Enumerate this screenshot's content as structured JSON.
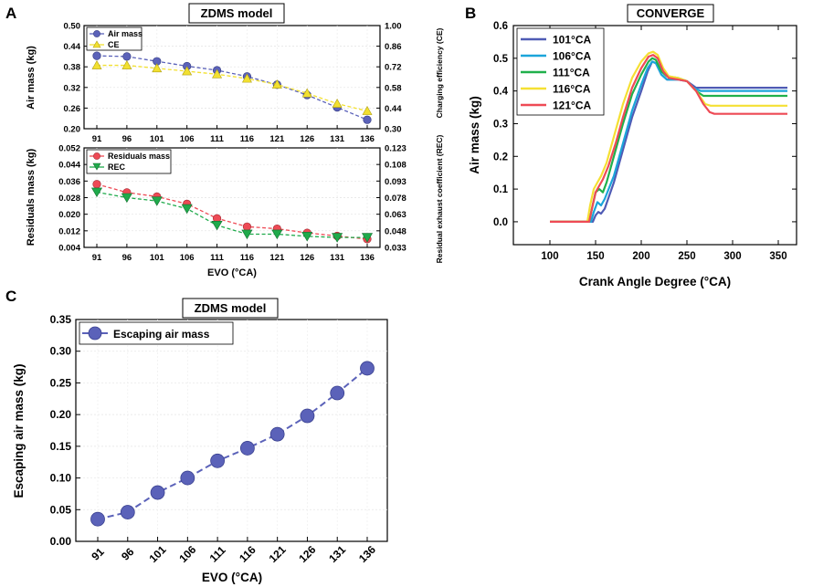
{
  "panels": {
    "a_letter": "A",
    "b_letter": "B",
    "c_letter": "C"
  },
  "chart_data": [
    {
      "id": "A-top",
      "type": "line",
      "title": "ZDMS model",
      "categories": [
        "91",
        "96",
        "101",
        "106",
        "111",
        "116",
        "121",
        "126",
        "131",
        "136"
      ],
      "ylabel": "Air mass (kg)",
      "y2label": "Charging efficiency (CE)",
      "ylim": [
        0.2,
        0.5
      ],
      "y2lim": [
        0.3,
        1.0
      ],
      "yticks": [
        "0.20",
        "0.26",
        "0.32",
        "0.38",
        "0.44",
        "0.50"
      ],
      "y2ticks": [
        "0.30",
        "0.44",
        "0.58",
        "0.72",
        "0.86",
        "1.00"
      ],
      "series": [
        {
          "name": "Air mass",
          "axis": "left",
          "color": "#5B62B9",
          "values": [
            0.412,
            0.41,
            0.396,
            0.382,
            0.37,
            0.352,
            0.328,
            0.298,
            0.262,
            0.226
          ]
        },
        {
          "name": "CE",
          "axis": "right",
          "color": "#F2E030",
          "values": [
            0.73,
            0.73,
            0.71,
            0.69,
            0.67,
            0.64,
            0.6,
            0.54,
            0.47,
            0.42
          ]
        }
      ]
    },
    {
      "id": "A-bottom",
      "type": "line",
      "categories": [
        "91",
        "96",
        "101",
        "106",
        "111",
        "116",
        "121",
        "126",
        "131",
        "136"
      ],
      "xlabel": "EVO (°CA)",
      "ylabel": "Residuals mass (kg)",
      "y2label": "Residual exhaust coefficient (REC)",
      "ylim": [
        0.004,
        0.052
      ],
      "y2lim": [
        0.033,
        0.123
      ],
      "yticks": [
        "0.004",
        "0.012",
        "0.020",
        "0.028",
        "0.036",
        "0.044",
        "0.052"
      ],
      "y2ticks": [
        "0.033",
        "0.048",
        "0.063",
        "0.078",
        "0.093",
        "0.108",
        "0.123"
      ],
      "series": [
        {
          "name": "Residuals mass",
          "axis": "left",
          "color": "#EE4A55",
          "values": [
            0.0345,
            0.0305,
            0.0285,
            0.025,
            0.018,
            0.014,
            0.013,
            0.011,
            0.0095,
            0.008
          ]
        },
        {
          "name": "REC",
          "axis": "right",
          "color": "#1FAA4B",
          "values": [
            0.083,
            0.078,
            0.075,
            0.068,
            0.053,
            0.045,
            0.045,
            0.043,
            0.042,
            0.042
          ]
        }
      ]
    },
    {
      "id": "B",
      "type": "line",
      "title": "CONVERGE",
      "xlabel": "Crank Angle Degree (°CA)",
      "ylabel": "Air mass (kg)",
      "xlim": [
        60,
        370
      ],
      "ylim": [
        -0.07,
        0.6
      ],
      "xticks": [
        100,
        150,
        200,
        250,
        300,
        350
      ],
      "yticks": [
        "0.0",
        "0.1",
        "0.2",
        "0.3",
        "0.4",
        "0.5",
        "0.6"
      ],
      "series": [
        {
          "name": "101°CA",
          "color": "#4F5BB5",
          "points": [
            [
              100,
              0
            ],
            [
              147,
              0
            ],
            [
              150,
              0.02
            ],
            [
              153,
              0.03
            ],
            [
              156,
              0.025
            ],
            [
              160,
              0.04
            ],
            [
              170,
              0.12
            ],
            [
              180,
              0.22
            ],
            [
              190,
              0.32
            ],
            [
              200,
              0.4
            ],
            [
              207,
              0.46
            ],
            [
              212,
              0.49
            ],
            [
              216,
              0.485
            ],
            [
              222,
              0.45
            ],
            [
              228,
              0.435
            ],
            [
              240,
              0.435
            ],
            [
              250,
              0.43
            ],
            [
              255,
              0.42
            ],
            [
              260,
              0.41
            ],
            [
              270,
              0.41
            ],
            [
              360,
              0.41
            ]
          ]
        },
        {
          "name": "106°CA",
          "color": "#1BA5DA",
          "points": [
            [
              100,
              0
            ],
            [
              145,
              0
            ],
            [
              148,
              0.03
            ],
            [
              152,
              0.06
            ],
            [
              156,
              0.05
            ],
            [
              160,
              0.07
            ],
            [
              170,
              0.14
            ],
            [
              180,
              0.24
            ],
            [
              190,
              0.34
            ],
            [
              200,
              0.42
            ],
            [
              207,
              0.47
            ],
            [
              212,
              0.49
            ],
            [
              216,
              0.485
            ],
            [
              222,
              0.45
            ],
            [
              228,
              0.435
            ],
            [
              240,
              0.435
            ],
            [
              250,
              0.43
            ],
            [
              257,
              0.41
            ],
            [
              265,
              0.4
            ],
            [
              270,
              0.4
            ],
            [
              360,
              0.4
            ]
          ]
        },
        {
          "name": "111°CA",
          "color": "#20B04B",
          "points": [
            [
              100,
              0
            ],
            [
              143,
              0
            ],
            [
              146,
              0.04
            ],
            [
              150,
              0.09
            ],
            [
              154,
              0.1
            ],
            [
              158,
              0.09
            ],
            [
              162,
              0.12
            ],
            [
              170,
              0.2
            ],
            [
              180,
              0.3
            ],
            [
              190,
              0.39
            ],
            [
              200,
              0.45
            ],
            [
              208,
              0.49
            ],
            [
              212,
              0.5
            ],
            [
              216,
              0.495
            ],
            [
              222,
              0.46
            ],
            [
              228,
              0.445
            ],
            [
              240,
              0.44
            ],
            [
              250,
              0.43
            ],
            [
              260,
              0.4
            ],
            [
              268,
              0.385
            ],
            [
              275,
              0.385
            ],
            [
              360,
              0.385
            ]
          ]
        },
        {
          "name": "116°CA",
          "color": "#F5E033",
          "points": [
            [
              100,
              0
            ],
            [
              141,
              0
            ],
            [
              144,
              0.05
            ],
            [
              148,
              0.1
            ],
            [
              152,
              0.12
            ],
            [
              156,
              0.14
            ],
            [
              162,
              0.18
            ],
            [
              170,
              0.26
            ],
            [
              180,
              0.36
            ],
            [
              190,
              0.44
            ],
            [
              200,
              0.49
            ],
            [
              208,
              0.515
            ],
            [
              213,
              0.52
            ],
            [
              218,
              0.51
            ],
            [
              224,
              0.47
            ],
            [
              230,
              0.445
            ],
            [
              240,
              0.44
            ],
            [
              250,
              0.43
            ],
            [
              260,
              0.4
            ],
            [
              270,
              0.36
            ],
            [
              276,
              0.355
            ],
            [
              360,
              0.355
            ]
          ]
        },
        {
          "name": "121°CA",
          "color": "#EE4A55",
          "points": [
            [
              100,
              0
            ],
            [
              143,
              0
            ],
            [
              146,
              0.04
            ],
            [
              150,
              0.09
            ],
            [
              154,
              0.11
            ],
            [
              158,
              0.13
            ],
            [
              164,
              0.17
            ],
            [
              172,
              0.24
            ],
            [
              180,
              0.32
            ],
            [
              190,
              0.41
            ],
            [
              200,
              0.47
            ],
            [
              208,
              0.505
            ],
            [
              213,
              0.51
            ],
            [
              218,
              0.5
            ],
            [
              224,
              0.46
            ],
            [
              230,
              0.44
            ],
            [
              240,
              0.435
            ],
            [
              250,
              0.43
            ],
            [
              260,
              0.4
            ],
            [
              268,
              0.36
            ],
            [
              275,
              0.335
            ],
            [
              280,
              0.33
            ],
            [
              360,
              0.33
            ]
          ]
        }
      ]
    },
    {
      "id": "C",
      "type": "line",
      "title": "ZDMS model",
      "categories": [
        "91",
        "96",
        "101",
        "106",
        "111",
        "116",
        "121",
        "126",
        "131",
        "136"
      ],
      "xlabel": "EVO (°CA)",
      "ylabel": "Escaping air mass (kg)",
      "ylim": [
        0.0,
        0.35
      ],
      "yticks": [
        "0.00",
        "0.05",
        "0.10",
        "0.15",
        "0.20",
        "0.25",
        "0.30",
        "0.35"
      ],
      "series": [
        {
          "name": "Escaping air mass",
          "color": "#5B62B9",
          "values": [
            0.035,
            0.046,
            0.077,
            0.1,
            0.127,
            0.147,
            0.169,
            0.198,
            0.234,
            0.273
          ]
        }
      ]
    }
  ]
}
